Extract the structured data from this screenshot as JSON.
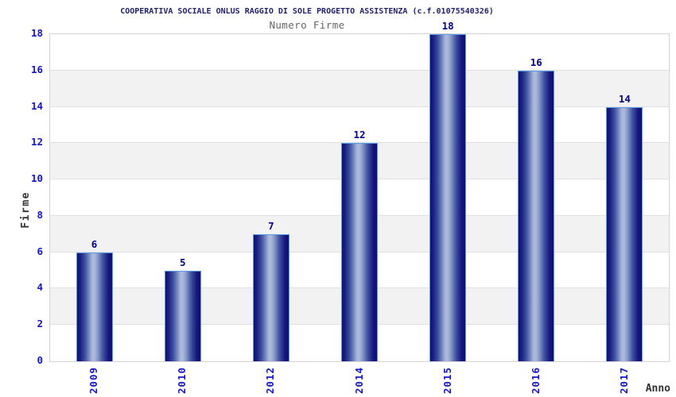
{
  "chart_data": {
    "type": "bar",
    "title": "COOPERATIVA SOCIALE ONLUS RAGGIO DI SOLE PROGETTO ASSISTENZA (c.f.01075540326)",
    "subtitle": "Numero Firme",
    "xlabel": "Anno",
    "ylabel": "Firme",
    "categories": [
      "2009",
      "2010",
      "2012",
      "2014",
      "2015",
      "2016",
      "2017"
    ],
    "values": [
      6,
      5,
      7,
      12,
      18,
      16,
      14
    ],
    "ylim": [
      0,
      18
    ],
    "ytick_step": 2,
    "yticks": [
      0,
      2,
      4,
      6,
      8,
      10,
      12,
      14,
      16,
      18
    ],
    "legend": "none",
    "grid": "horizontal-gridlines-with-alternating-bands",
    "bar_orientation": "vertical",
    "colors": {
      "bar_dark": "#0f0f78",
      "bar_light": "#abb8da",
      "bar_border": "#5b9de2",
      "tick_label": "#1414cc",
      "value_label": "#00008b",
      "title": "#22226e",
      "subtitle": "#666666",
      "band_gray": "#f2f2f2",
      "band_white": "#ffffff",
      "grid_line": "#e0e0e0",
      "plot_border": "#d4d4d4",
      "axis_title": "#333333"
    }
  }
}
